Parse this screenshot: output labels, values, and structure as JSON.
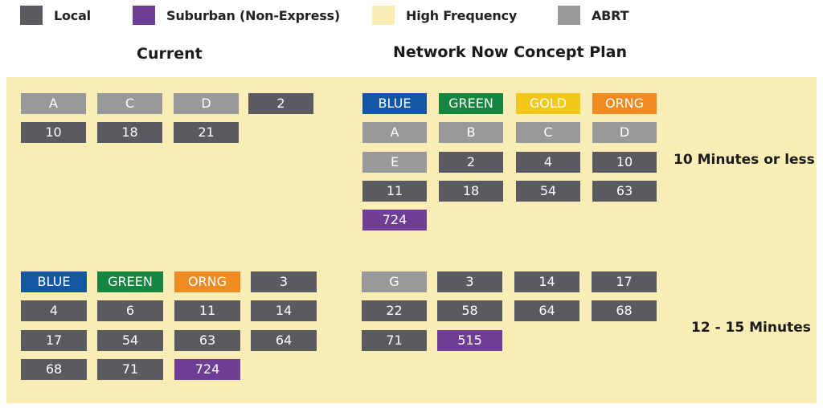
{
  "legend": {
    "items": [
      {
        "label": "Local",
        "color": "#5a5b60"
      },
      {
        "label": "Suburban (Non-Express)",
        "color": "#6e3d96"
      },
      {
        "label": "High Frequency",
        "color": "#faedb6"
      },
      {
        "label": "ABRT",
        "color": "#98999b"
      }
    ]
  },
  "headings": {
    "current": "Current",
    "concept": "Network Now Concept Plan"
  },
  "frequency_labels": {
    "high": "10 Minutes or less",
    "mid": "12 - 15 Minutes"
  },
  "colors": {
    "local": "#5a5b60",
    "suburban": "#6e3d96",
    "abrt": "#98999b",
    "blue": "#1257a6",
    "green": "#15853f",
    "gold": "#f3c81b",
    "orng": "#f08b23",
    "panel": "#faedb6"
  },
  "current": {
    "ten_min_or_less": [
      [
        "A",
        "C",
        "D",
        "2"
      ],
      [
        "10",
        "18",
        "21"
      ]
    ],
    "twelve_to_fifteen": [
      [
        "BLUE",
        "GREEN",
        "ORNG",
        "3"
      ],
      [
        "4",
        "6",
        "11",
        "14"
      ],
      [
        "17",
        "54",
        "63",
        "64"
      ],
      [
        "68",
        "71",
        "724"
      ]
    ]
  },
  "concept": {
    "ten_min_or_less": [
      [
        "BLUE",
        "GREEN",
        "GOLD",
        "ORNG"
      ],
      [
        "A",
        "B",
        "C",
        "D"
      ],
      [
        "E",
        "2",
        "4",
        "10"
      ],
      [
        "11",
        "18",
        "54",
        "63"
      ],
      [
        "724"
      ]
    ],
    "twelve_to_fifteen": [
      [
        "G",
        "3",
        "14",
        "17"
      ],
      [
        "22",
        "58",
        "64",
        "68"
      ],
      [
        "71",
        "515"
      ]
    ]
  }
}
